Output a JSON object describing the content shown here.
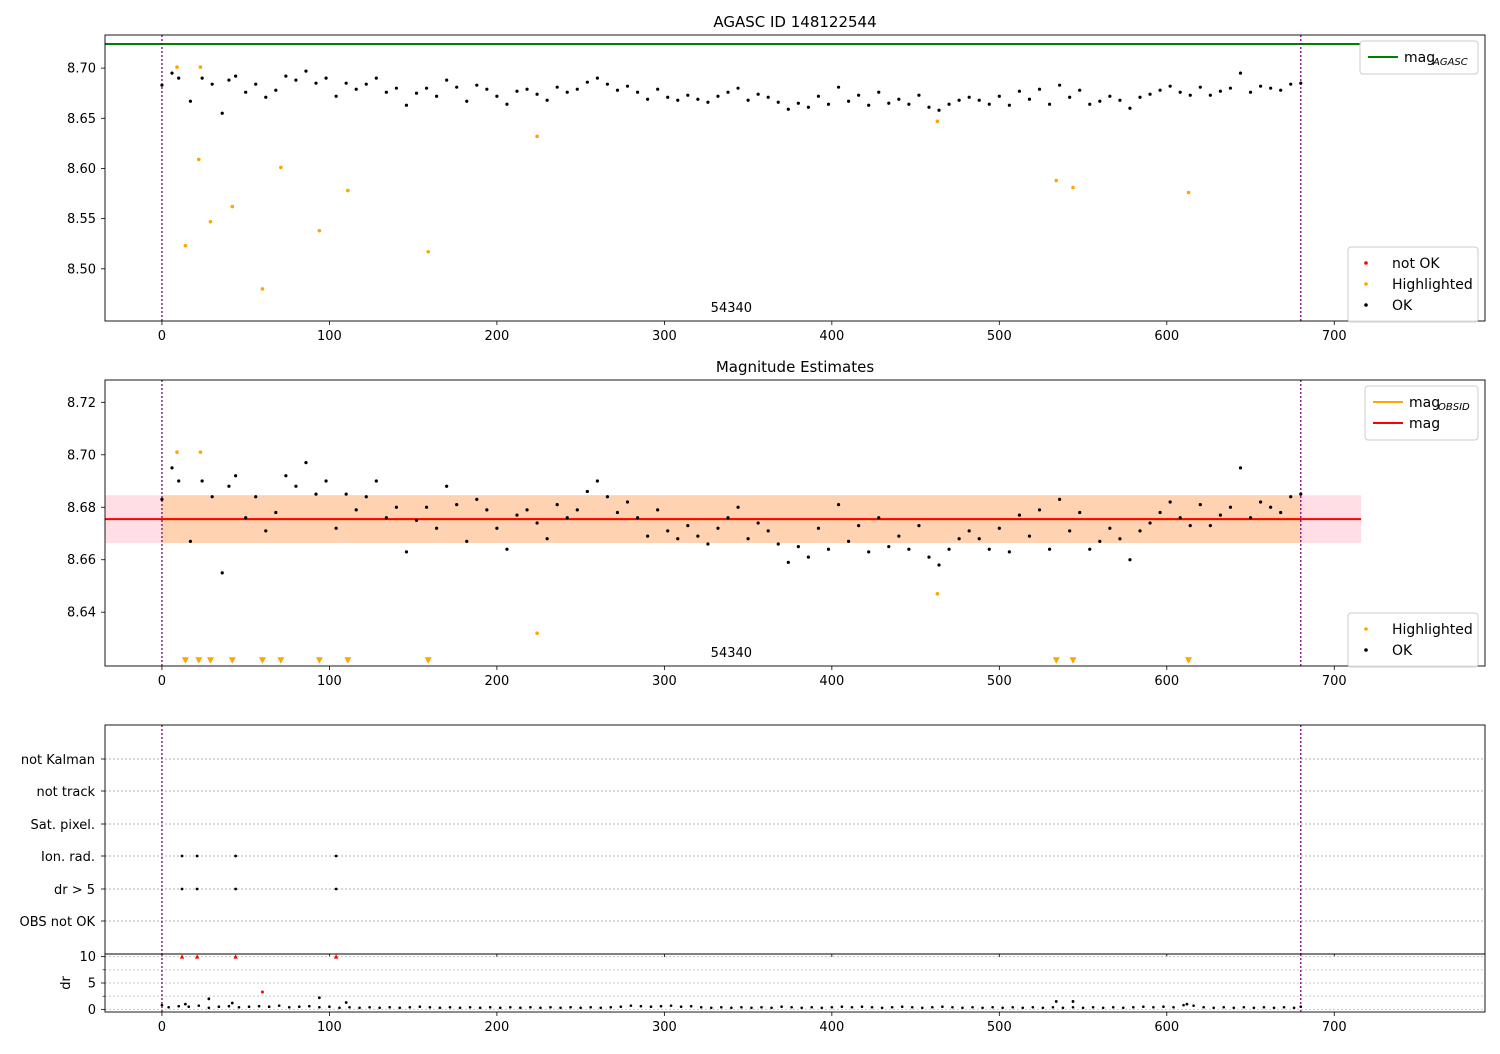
{
  "chart_data": [
    {
      "type": "scatter",
      "title": "AGASC ID 148122544",
      "annotation": "54340",
      "xlim": [
        -34,
        790
      ],
      "ylim": [
        8.448,
        8.733
      ],
      "x_ticks": [
        0,
        100,
        200,
        300,
        400,
        500,
        600,
        700
      ],
      "y_ticks": [
        8.5,
        8.55,
        8.6,
        8.65,
        8.7
      ],
      "y_tick_labels": [
        "8.50",
        "8.55",
        "8.60",
        "8.65",
        "8.70"
      ],
      "vlines": [
        0,
        680
      ],
      "hlines": [
        {
          "name": "mag_AGASC",
          "y": 8.724,
          "x_range": [
            -34,
            716
          ],
          "color": "#008000"
        }
      ],
      "legends": [
        {
          "position": "upper right",
          "items": [
            {
              "label": "mag",
              "sub": "AGASC",
              "kind": "line",
              "color": "#008000"
            }
          ]
        },
        {
          "position": "lower right",
          "items": [
            {
              "label": "not OK",
              "kind": "dot",
              "color": "#ff0000"
            },
            {
              "label": "Highlighted",
              "kind": "dot",
              "color": "#ffa500"
            },
            {
              "label": "OK",
              "kind": "dot",
              "color": "#000000"
            }
          ]
        }
      ],
      "series": [
        {
          "name": "OK",
          "color": "#000000",
          "x": [
            0,
            6,
            10,
            17,
            24,
            30,
            36,
            40,
            44,
            50,
            56,
            62,
            68,
            74,
            80,
            86,
            92,
            98,
            104,
            110,
            116,
            122,
            128,
            134,
            140,
            146,
            152,
            158,
            164,
            170,
            176,
            182,
            188,
            194,
            200,
            206,
            212,
            218,
            224,
            230,
            236,
            242,
            248,
            254,
            260,
            266,
            272,
            278,
            284,
            290,
            296,
            302,
            308,
            314,
            320,
            326,
            332,
            338,
            344,
            350,
            356,
            362,
            368,
            374,
            380,
            386,
            392,
            398,
            404,
            410,
            416,
            422,
            428,
            434,
            440,
            446,
            452,
            458,
            464,
            470,
            476,
            482,
            488,
            494,
            500,
            506,
            512,
            518,
            524,
            530,
            536,
            542,
            548,
            554,
            560,
            566,
            572,
            578,
            584,
            590,
            596,
            602,
            608,
            614,
            620,
            626,
            632,
            638,
            644,
            650,
            656,
            662,
            668,
            674,
            680
          ],
          "y": [
            8.683,
            8.695,
            8.69,
            8.667,
            8.69,
            8.684,
            8.655,
            8.688,
            8.692,
            8.676,
            8.684,
            8.671,
            8.678,
            8.692,
            8.688,
            8.697,
            8.685,
            8.69,
            8.672,
            8.685,
            8.679,
            8.684,
            8.69,
            8.676,
            8.68,
            8.663,
            8.675,
            8.68,
            8.672,
            8.688,
            8.681,
            8.667,
            8.683,
            8.679,
            8.672,
            8.664,
            8.677,
            8.679,
            8.674,
            8.668,
            8.681,
            8.676,
            8.679,
            8.686,
            8.69,
            8.684,
            8.678,
            8.682,
            8.676,
            8.669,
            8.679,
            8.671,
            8.668,
            8.673,
            8.669,
            8.666,
            8.672,
            8.676,
            8.68,
            8.668,
            8.674,
            8.671,
            8.666,
            8.659,
            8.665,
            8.661,
            8.672,
            8.664,
            8.681,
            8.667,
            8.673,
            8.663,
            8.676,
            8.665,
            8.669,
            8.664,
            8.673,
            8.661,
            8.658,
            8.664,
            8.668,
            8.671,
            8.668,
            8.664,
            8.672,
            8.663,
            8.677,
            8.669,
            8.679,
            8.664,
            8.683,
            8.671,
            8.678,
            8.664,
            8.667,
            8.672,
            8.668,
            8.66,
            8.671,
            8.674,
            8.678,
            8.682,
            8.676,
            8.673,
            8.681,
            8.673,
            8.677,
            8.68,
            8.695,
            8.676,
            8.682,
            8.68,
            8.678,
            8.684,
            8.685
          ]
        },
        {
          "name": "Highlighted",
          "color": "#ffa500",
          "x": [
            9,
            14,
            22,
            23,
            29,
            42,
            60,
            71,
            94,
            111,
            159,
            224,
            463,
            534,
            544,
            613
          ],
          "y": [
            8.701,
            8.523,
            8.609,
            8.701,
            8.547,
            8.562,
            8.48,
            8.601,
            8.538,
            8.578,
            8.517,
            8.632,
            8.647,
            8.588,
            8.581,
            8.576
          ]
        }
      ]
    },
    {
      "type": "scatter",
      "title": "Magnitude Estimates",
      "annotation": "54340",
      "xlim": [
        -34,
        790
      ],
      "ylim": [
        8.6195,
        8.7285
      ],
      "x_ticks": [
        0,
        100,
        200,
        300,
        400,
        500,
        600,
        700
      ],
      "y_ticks": [
        8.64,
        8.66,
        8.68,
        8.7,
        8.72
      ],
      "y_tick_labels": [
        "8.64",
        "8.66",
        "8.68",
        "8.70",
        "8.72"
      ],
      "vlines": [
        0,
        680
      ],
      "hlines": [
        {
          "name": "mag",
          "y": 8.6755,
          "x_range": [
            -34,
            716
          ],
          "color": "#ff0000"
        }
      ],
      "bands": [
        {
          "x_range": [
            -34,
            716
          ],
          "y_range": [
            8.6664,
            8.6846
          ],
          "color": "#ffc0cb",
          "opacity": 0.5
        },
        {
          "x_range": [
            0,
            680
          ],
          "y_range": [
            8.6664,
            8.6846
          ],
          "color": "#ffa500",
          "opacity": 0.22
        }
      ],
      "obsid_line": {
        "x_range": [
          0,
          680
        ],
        "y": 8.6755,
        "color": "#ffa500"
      },
      "legends": [
        {
          "position": "upper right",
          "items": [
            {
              "label": "mag",
              "sub": "OBSID",
              "kind": "line",
              "color": "#ffa500"
            },
            {
              "label": "mag",
              "kind": "line",
              "color": "#ff0000"
            }
          ]
        },
        {
          "position": "lower right",
          "items": [
            {
              "label": "Highlighted",
              "kind": "dot",
              "color": "#ffa500"
            },
            {
              "label": "OK",
              "kind": "dot",
              "color": "#000000"
            }
          ]
        }
      ],
      "series": [
        {
          "name": "OK",
          "color": "#000000",
          "x": [
            0,
            6,
            10,
            17,
            24,
            30,
            36,
            40,
            44,
            50,
            56,
            62,
            68,
            74,
            80,
            86,
            92,
            98,
            104,
            110,
            116,
            122,
            128,
            134,
            140,
            146,
            152,
            158,
            164,
            170,
            176,
            182,
            188,
            194,
            200,
            206,
            212,
            218,
            224,
            230,
            236,
            242,
            248,
            254,
            260,
            266,
            272,
            278,
            284,
            290,
            296,
            302,
            308,
            314,
            320,
            326,
            332,
            338,
            344,
            350,
            356,
            362,
            368,
            374,
            380,
            386,
            392,
            398,
            404,
            410,
            416,
            422,
            428,
            434,
            440,
            446,
            452,
            458,
            464,
            470,
            476,
            482,
            488,
            494,
            500,
            506,
            512,
            518,
            524,
            530,
            536,
            542,
            548,
            554,
            560,
            566,
            572,
            578,
            584,
            590,
            596,
            602,
            608,
            614,
            620,
            626,
            632,
            638,
            644,
            650,
            656,
            662,
            668,
            674,
            680
          ],
          "y": [
            8.683,
            8.695,
            8.69,
            8.667,
            8.69,
            8.684,
            8.655,
            8.688,
            8.692,
            8.676,
            8.684,
            8.671,
            8.678,
            8.692,
            8.688,
            8.697,
            8.685,
            8.69,
            8.672,
            8.685,
            8.679,
            8.684,
            8.69,
            8.676,
            8.68,
            8.663,
            8.675,
            8.68,
            8.672,
            8.688,
            8.681,
            8.667,
            8.683,
            8.679,
            8.672,
            8.664,
            8.677,
            8.679,
            8.674,
            8.668,
            8.681,
            8.676,
            8.679,
            8.686,
            8.69,
            8.684,
            8.678,
            8.682,
            8.676,
            8.669,
            8.679,
            8.671,
            8.668,
            8.673,
            8.669,
            8.666,
            8.672,
            8.676,
            8.68,
            8.668,
            8.674,
            8.671,
            8.666,
            8.659,
            8.665,
            8.661,
            8.672,
            8.664,
            8.681,
            8.667,
            8.673,
            8.663,
            8.676,
            8.665,
            8.669,
            8.664,
            8.673,
            8.661,
            8.658,
            8.664,
            8.668,
            8.671,
            8.668,
            8.664,
            8.672,
            8.663,
            8.677,
            8.669,
            8.679,
            8.664,
            8.683,
            8.671,
            8.678,
            8.664,
            8.667,
            8.672,
            8.668,
            8.66,
            8.671,
            8.674,
            8.678,
            8.682,
            8.676,
            8.673,
            8.681,
            8.673,
            8.677,
            8.68,
            8.695,
            8.676,
            8.682,
            8.68,
            8.678,
            8.684,
            8.685
          ]
        },
        {
          "name": "Highlighted",
          "color": "#ffa500",
          "x": [
            9,
            23,
            224,
            463
          ],
          "y": [
            8.701,
            8.701,
            8.632,
            8.647
          ]
        },
        {
          "name": "Highlighted (below range)",
          "marker": "triangle-down",
          "color": "#ffa500",
          "x": [
            14,
            22,
            29,
            42,
            60,
            71,
            94,
            111,
            159,
            534,
            544,
            613
          ],
          "y": [
            8.6215,
            8.6215,
            8.6215,
            8.6215,
            8.6215,
            8.6215,
            8.6215,
            8.6215,
            8.6215,
            8.6215,
            8.6215,
            8.6215
          ]
        }
      ]
    },
    {
      "type": "scatter",
      "title": "",
      "categories": [
        "not Kalman",
        "not track",
        "Sat. pixel.",
        "Ion. rad.",
        "dr > 5",
        "OBS not OK"
      ],
      "xlim": [
        -34,
        790
      ],
      "vlines": [
        0,
        680
      ],
      "series": [
        {
          "name": "Ion. rad.",
          "color": "#000000",
          "x": [
            12,
            21,
            44,
            104
          ]
        },
        {
          "name": "dr > 5",
          "color": "#000000",
          "x": [
            12,
            21,
            44,
            104
          ]
        }
      ]
    },
    {
      "type": "scatter",
      "title": "",
      "ylabel": "dr",
      "xlim": [
        -34,
        790
      ],
      "ylim": [
        -0.5,
        10.5
      ],
      "x_ticks": [
        0,
        100,
        200,
        300,
        400,
        500,
        600,
        700
      ],
      "x_tick_labels": [
        "0",
        "100",
        "200",
        "300",
        "400",
        "500",
        "600",
        "700"
      ],
      "y_ticks": [
        0,
        5,
        10
      ],
      "y_tick_labels": [
        "0",
        "5",
        "10"
      ],
      "vlines": [
        0,
        680
      ],
      "series": [
        {
          "name": "dr",
          "color": "#000000",
          "x": [
            0,
            4,
            10,
            16,
            22,
            28,
            34,
            40,
            46,
            52,
            58,
            64,
            70,
            76,
            82,
            88,
            94,
            100,
            106,
            112,
            118,
            124,
            130,
            136,
            142,
            148,
            154,
            160,
            166,
            172,
            178,
            184,
            190,
            196,
            202,
            208,
            214,
            220,
            226,
            232,
            238,
            244,
            250,
            256,
            262,
            268,
            274,
            280,
            286,
            292,
            298,
            304,
            310,
            316,
            322,
            328,
            334,
            340,
            346,
            352,
            358,
            364,
            370,
            376,
            382,
            388,
            394,
            400,
            406,
            412,
            418,
            424,
            430,
            436,
            442,
            448,
            454,
            460,
            466,
            472,
            478,
            484,
            490,
            496,
            502,
            508,
            514,
            520,
            526,
            532,
            538,
            544,
            550,
            556,
            562,
            568,
            574,
            580,
            586,
            592,
            598,
            604,
            610,
            616,
            622,
            628,
            634,
            640,
            646,
            652,
            658,
            664,
            670,
            676,
            680
          ],
          "y": [
            0.8,
            0.4,
            0.6,
            0.5,
            0.7,
            0.3,
            0.5,
            0.6,
            0.4,
            0.5,
            0.6,
            0.5,
            0.7,
            0.4,
            0.5,
            0.6,
            0.4,
            0.5,
            0.3,
            0.4,
            0.3,
            0.4,
            0.3,
            0.4,
            0.3,
            0.4,
            0.5,
            0.4,
            0.3,
            0.4,
            0.3,
            0.4,
            0.3,
            0.4,
            0.3,
            0.4,
            0.3,
            0.4,
            0.3,
            0.4,
            0.3,
            0.4,
            0.3,
            0.4,
            0.3,
            0.4,
            0.5,
            0.7,
            0.6,
            0.5,
            0.6,
            0.7,
            0.5,
            0.6,
            0.4,
            0.3,
            0.4,
            0.3,
            0.4,
            0.3,
            0.4,
            0.3,
            0.5,
            0.4,
            0.3,
            0.4,
            0.3,
            0.4,
            0.5,
            0.4,
            0.5,
            0.4,
            0.3,
            0.4,
            0.5,
            0.4,
            0.3,
            0.4,
            0.5,
            0.4,
            0.3,
            0.4,
            0.3,
            0.4,
            0.3,
            0.4,
            0.3,
            0.4,
            0.3,
            0.4,
            0.3,
            0.4,
            0.3,
            0.4,
            0.3,
            0.4,
            0.3,
            0.4,
            0.5,
            0.4,
            0.5,
            0.4,
            0.8,
            0.7,
            0.4,
            0.3,
            0.4,
            0.3,
            0.4,
            0.3,
            0.4,
            0.3,
            0.4,
            0.3,
            0.5
          ]
        },
        {
          "name": "dr (outliers)",
          "color": "#000000",
          "x": [
            14,
            28,
            42,
            94,
            110,
            534,
            544,
            612
          ],
          "y": [
            1.0,
            2.0,
            1.2,
            2.2,
            1.3,
            1.5,
            1.5,
            1.0
          ]
        },
        {
          "name": "dr (not OK)",
          "color": "#ff0000",
          "x": [
            12,
            21,
            44,
            60,
            104
          ],
          "y": [
            10,
            10,
            10,
            3.3,
            10
          ]
        }
      ]
    }
  ]
}
